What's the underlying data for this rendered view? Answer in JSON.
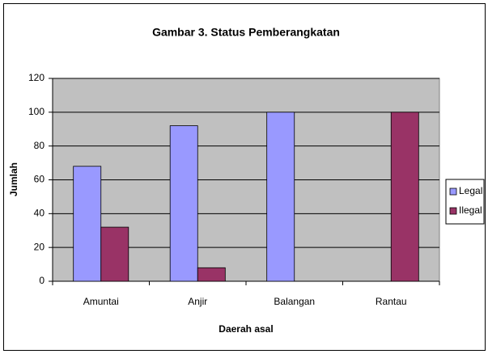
{
  "chart_data": {
    "type": "bar",
    "title": "Gambar 3. Status Pemberangkatan",
    "x_label": "Daerah asal",
    "y_label": "Jumlah",
    "categories": [
      "Amuntai",
      "Anjir",
      "Balangan",
      "Rantau"
    ],
    "series": [
      {
        "name": "Legal",
        "color": "#9999ff",
        "values": [
          68,
          92,
          100,
          0
        ]
      },
      {
        "name": "Ilegal",
        "color": "#993366",
        "values": [
          32,
          8,
          0,
          100
        ]
      }
    ],
    "ylim": [
      0,
      120
    ],
    "yticks": [
      0,
      20,
      40,
      60,
      80,
      100,
      120
    ],
    "grid": true,
    "legend": "right"
  }
}
